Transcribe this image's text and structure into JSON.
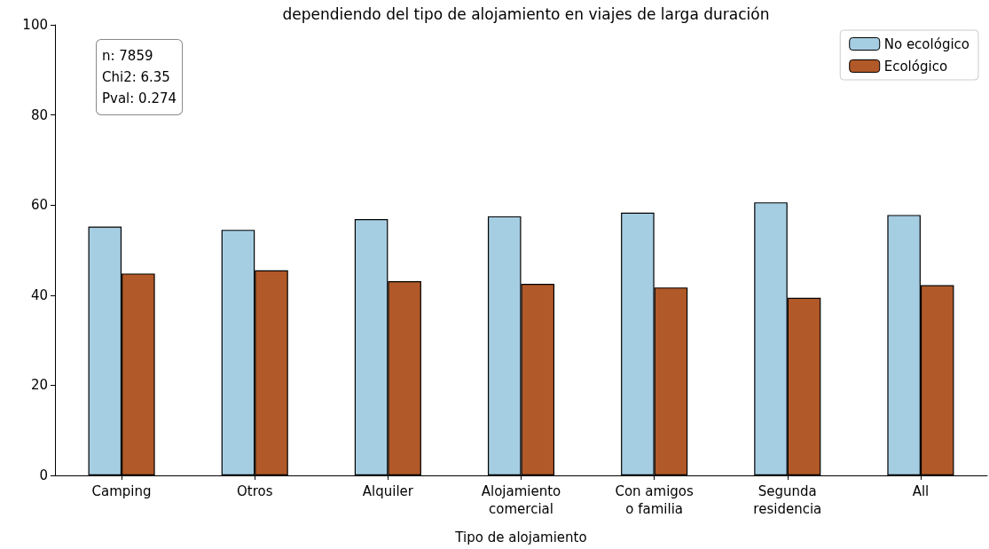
{
  "chart_data": {
    "type": "bar",
    "title": "dependiendo del tipo de alojamiento en viajes de larga duración",
    "categories": [
      "Camping",
      "Otros",
      "Alquiler",
      "Alojamiento\ncomercial",
      "Con amigos\no familia",
      "Segunda\nresidencia",
      "All"
    ],
    "series": [
      {
        "name": "No ecológico",
        "color": "#a6cee3",
        "values": [
          55.2,
          54.5,
          56.9,
          57.5,
          58.3,
          60.6,
          57.8
        ]
      },
      {
        "name": "Ecológico",
        "color": "#b15928",
        "values": [
          44.8,
          45.5,
          43.1,
          42.5,
          41.7,
          39.4,
          42.2
        ]
      }
    ],
    "xlabel": "Tipo de alojamiento",
    "ylim": [
      0,
      100
    ],
    "yticks": [
      0,
      20,
      40,
      60,
      80,
      100
    ],
    "annotations": [
      "n: 7859\nChi2: 6.35\nPval: 0.274"
    ],
    "grid": false,
    "legend": "top right"
  }
}
